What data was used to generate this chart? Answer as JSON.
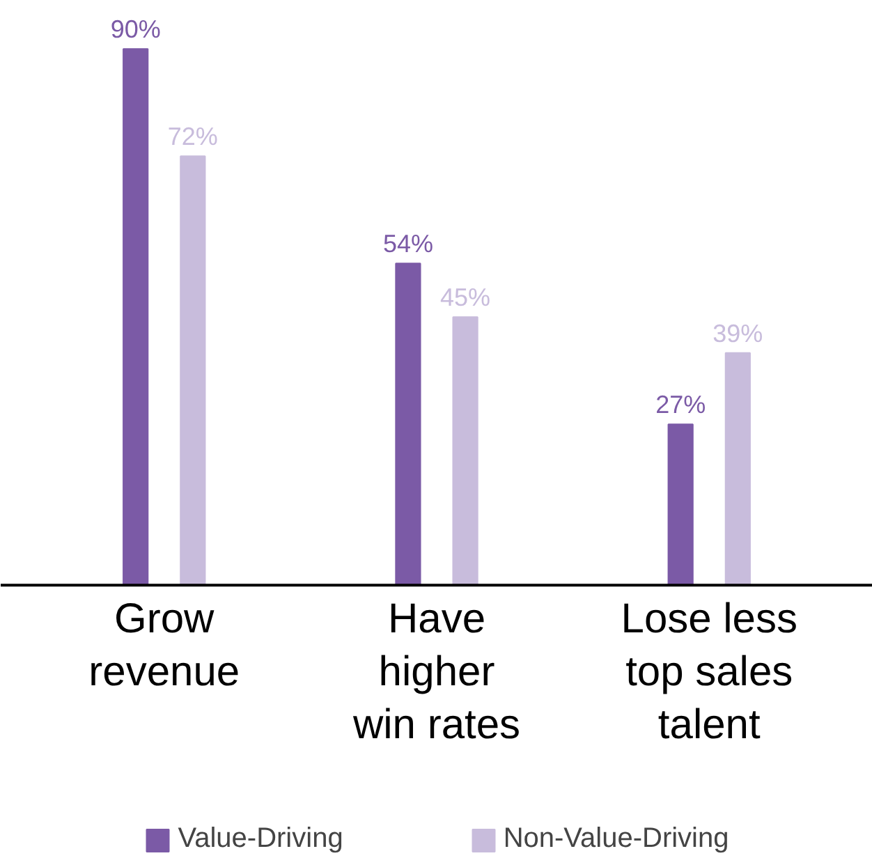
{
  "chart_data": {
    "type": "bar",
    "categories": [
      "Grow\nrevenue",
      "Have\nhigher\nwin rates",
      "Lose less\ntop sales\ntalent"
    ],
    "series": [
      {
        "name": "Value-Driving",
        "color": "#7b5aa6",
        "values": [
          90,
          54,
          27
        ],
        "value_labels": [
          "90%",
          "54%",
          "27%"
        ]
      },
      {
        "name": "Non-Value-Driving",
        "color": "#c8bcdc",
        "values": [
          72,
          45,
          39
        ],
        "value_labels": [
          "72%",
          "45%",
          "39%"
        ]
      }
    ],
    "legend": "bottom"
  }
}
